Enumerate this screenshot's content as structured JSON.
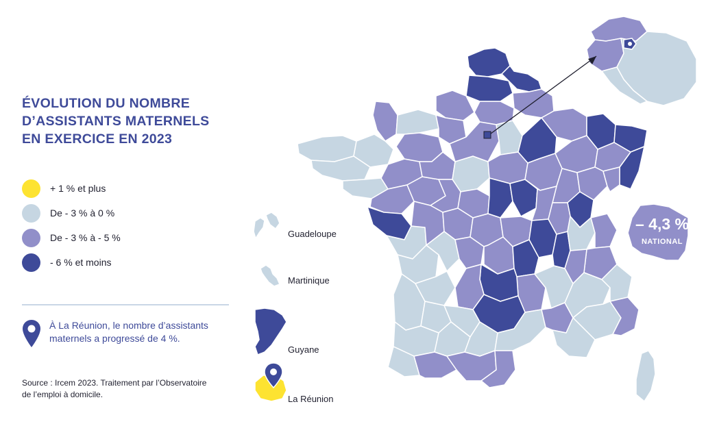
{
  "title": {
    "line1": "ÉVOLUTION DU NOMBRE",
    "line2": "D’ASSISTANTS MATERNELS",
    "line3": "EN EXERCICE EN 2023"
  },
  "legend": [
    {
      "label": "+ 1 % et plus",
      "color": "#fde331"
    },
    {
      "label": "De - 3 % à 0 %",
      "color": "#c6d6e2"
    },
    {
      "label": "De - 3 % à - 5 %",
      "color": "#918fc9"
    },
    {
      "label": "- 6 % et moins",
      "color": "#3e4a99"
    }
  ],
  "reunion_note": {
    "line1": "À La Réunion, le nombre d’assistants",
    "line2": "maternels a progressé de 4 %.",
    "icon": "map-pin-icon"
  },
  "source": {
    "line1": "Source : Ircem 2023. Traitement par l’Observatoire",
    "line2": "de l’emploi à domicile."
  },
  "territories": {
    "guadeloupe": {
      "label": "Guadeloupe",
      "category": "De - 3 % à 0 %"
    },
    "martinique": {
      "label": "Martinique",
      "category": "De - 3 % à 0 %"
    },
    "guyane": {
      "label": "Guyane",
      "category": "- 6 % et moins"
    },
    "reunion": {
      "label": "La Réunion",
      "category": "+ 1 % et plus"
    }
  },
  "national": {
    "value": "– 4,3 %",
    "label": "NATIONAL"
  },
  "colors": {
    "accent": "#3e4a99",
    "yellow": "#fde331",
    "light": "#c6d6e2",
    "mid": "#918fc9",
    "dark": "#3e4a99",
    "divider": "#c9d6e6"
  }
}
